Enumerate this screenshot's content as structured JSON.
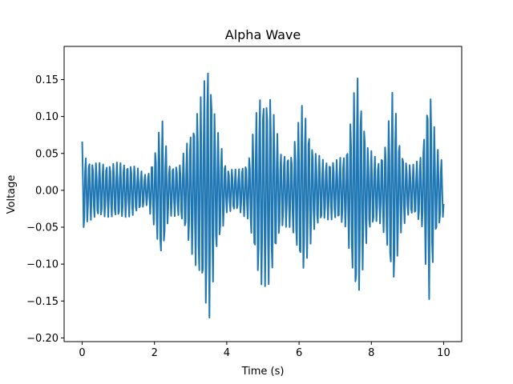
{
  "chart_data": {
    "type": "line",
    "title": "Alpha Wave",
    "xlabel": "Time (s)",
    "ylabel": "Voltage",
    "xlim": [
      -0.5,
      10.5
    ],
    "ylim": [
      -0.205,
      0.195
    ],
    "xticks": [
      0,
      2,
      4,
      6,
      8,
      10
    ],
    "xtick_labels": [
      "0",
      "2",
      "4",
      "6",
      "8",
      "10"
    ],
    "yticks": [
      -0.2,
      -0.15,
      -0.1,
      -0.05,
      0.0,
      0.05,
      0.1,
      0.15
    ],
    "ytick_labels": [
      "−0.20",
      "−0.15",
      "−0.10",
      "−0.05",
      "0.00",
      "0.05",
      "0.10",
      "0.15"
    ],
    "grid": false,
    "series": [
      {
        "color": "#1f77b4",
        "sample_rate_hz": 50,
        "carrier_freq_hz": 10,
        "envelope": {
          "t": [
            0,
            0.1,
            0.3,
            0.7,
            1.0,
            1.4,
            1.8,
            2.0,
            2.2,
            2.4,
            2.7,
            3.0,
            3.3,
            3.5,
            3.7,
            4.0,
            4.3,
            4.6,
            4.9,
            5.2,
            5.5,
            5.8,
            6.1,
            6.4,
            6.7,
            7.0,
            7.3,
            7.6,
            7.9,
            8.2,
            8.4,
            8.6,
            8.8,
            9.0,
            9.2,
            9.4,
            9.6,
            9.8,
            10.0
          ],
          "amplitude": [
            0.066,
            0.045,
            0.038,
            0.036,
            0.038,
            0.035,
            0.02,
            0.05,
            0.1,
            0.035,
            0.035,
            0.08,
            0.13,
            0.182,
            0.09,
            0.03,
            0.028,
            0.04,
            0.13,
            0.13,
            0.05,
            0.05,
            0.12,
            0.055,
            0.04,
            0.04,
            0.05,
            0.162,
            0.06,
            0.04,
            0.065,
            0.14,
            0.06,
            0.035,
            0.035,
            0.05,
            0.15,
            0.06,
            0.035
          ]
        }
      }
    ]
  }
}
